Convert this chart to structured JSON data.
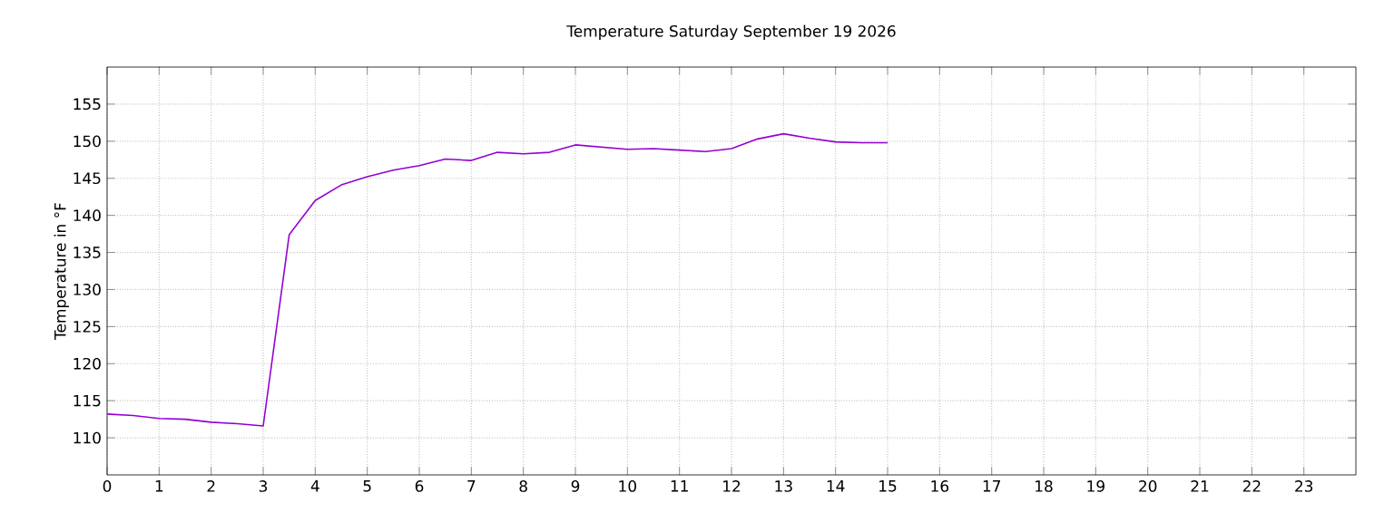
{
  "chart_data": {
    "type": "line",
    "title": "Temperature Saturday September 19 2026",
    "ylabel": "Temperature in °F",
    "x": [
      0,
      0.5,
      1,
      1.5,
      2,
      2.5,
      3,
      3.5,
      4,
      4.5,
      5,
      5.5,
      6,
      6.5,
      7,
      7.5,
      8,
      8.5,
      9,
      9.5,
      10,
      10.5,
      11,
      11.5,
      12,
      12.5,
      13,
      13.5,
      14,
      14.5,
      15
    ],
    "series": [
      {
        "color": "#9400d3",
        "values": [
          113.2,
          113.0,
          112.6,
          112.5,
          112.1,
          111.9,
          111.6,
          137.4,
          142.0,
          144.1,
          145.2,
          146.1,
          146.7,
          147.6,
          147.4,
          148.5,
          148.3,
          148.5,
          149.5,
          149.2,
          148.9,
          149.0,
          148.8,
          148.6,
          149.0,
          150.3,
          151.0,
          150.4,
          149.9,
          149.8,
          149.8
        ]
      }
    ],
    "xlim": [
      0,
      24
    ],
    "xticks": [
      0,
      1,
      2,
      3,
      4,
      5,
      6,
      7,
      8,
      9,
      10,
      11,
      12,
      13,
      14,
      15,
      16,
      17,
      18,
      19,
      20,
      21,
      22,
      23
    ],
    "ylim": [
      105,
      160
    ],
    "yticks": [
      110,
      115,
      120,
      125,
      130,
      135,
      140,
      145,
      150,
      155
    ],
    "grid": true,
    "marker": "none",
    "line_style": "solid"
  }
}
